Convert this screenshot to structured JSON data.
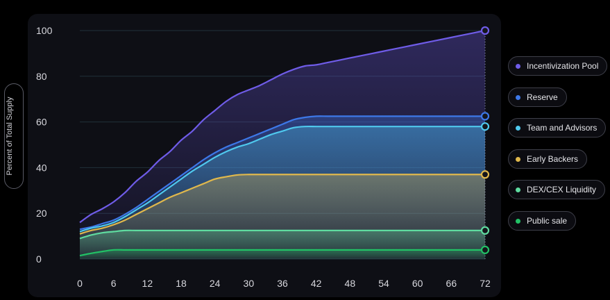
{
  "chart_data": {
    "type": "area",
    "ylabel": "Percent of Total Supply",
    "xlabel": "",
    "title": "",
    "xlim": [
      0,
      72
    ],
    "ylim": [
      0,
      100
    ],
    "x_ticks": [
      0,
      6,
      12,
      18,
      24,
      30,
      36,
      42,
      48,
      54,
      60,
      66,
      72
    ],
    "y_ticks": [
      0,
      20,
      40,
      60,
      80,
      100
    ],
    "grid": "horizontal",
    "legend_position": "right",
    "x": [
      0,
      2,
      4,
      6,
      8,
      10,
      12,
      14,
      16,
      18,
      20,
      22,
      24,
      26,
      28,
      30,
      32,
      34,
      36,
      38,
      40,
      42,
      44,
      46,
      48,
      50,
      52,
      54,
      56,
      58,
      60,
      62,
      64,
      66,
      68,
      70,
      72
    ],
    "series": [
      {
        "name": "Incentivization Pool",
        "color": "#6f5ce8",
        "values": [
          16,
          19.5,
          22,
          25,
          29,
          34,
          38,
          43,
          47,
          52,
          56,
          61,
          65,
          69,
          72,
          74,
          76,
          78.5,
          81,
          83,
          84.5,
          85,
          86,
          87,
          88,
          89,
          90,
          91,
          92,
          93,
          94,
          95,
          96,
          97,
          98,
          99,
          100
        ]
      },
      {
        "name": "Reserve",
        "color": "#3d78e8",
        "values": [
          13,
          14,
          15.5,
          17,
          19.5,
          22.5,
          26,
          29.5,
          33,
          36.5,
          40,
          43.5,
          46.5,
          49,
          51,
          53,
          55,
          57,
          59,
          61,
          62,
          62.5,
          62.5,
          62.5,
          62.5,
          62.5,
          62.5,
          62.5,
          62.5,
          62.5,
          62.5,
          62.5,
          62.5,
          62.5,
          62.5,
          62.5,
          62.5
        ]
      },
      {
        "name": "Team and Advisors",
        "color": "#4fc9ee",
        "values": [
          12,
          13.5,
          14.5,
          16,
          18.5,
          21.5,
          24.5,
          28,
          31.5,
          35,
          38.5,
          41.5,
          44.5,
          47,
          49,
          50.5,
          52.5,
          54.5,
          56,
          57.5,
          58,
          58,
          58,
          58,
          58,
          58,
          58,
          58,
          58,
          58,
          58,
          58,
          58,
          58,
          58,
          58,
          58
        ]
      },
      {
        "name": "Early Backers",
        "color": "#e0b84c",
        "values": [
          11,
          12.5,
          13.5,
          15,
          17,
          19.5,
          22,
          24.5,
          27,
          29,
          31,
          33,
          35,
          36,
          36.8,
          37,
          37,
          37,
          37,
          37,
          37,
          37,
          37,
          37,
          37,
          37,
          37,
          37,
          37,
          37,
          37,
          37,
          37,
          37,
          37,
          37,
          37
        ]
      },
      {
        "name": "DEX/CEX Liquidity",
        "color": "#5fdca0",
        "values": [
          9,
          10.5,
          11.5,
          12,
          12.5,
          12.5,
          12.5,
          12.5,
          12.5,
          12.5,
          12.5,
          12.5,
          12.5,
          12.5,
          12.5,
          12.5,
          12.5,
          12.5,
          12.5,
          12.5,
          12.5,
          12.5,
          12.5,
          12.5,
          12.5,
          12.5,
          12.5,
          12.5,
          12.5,
          12.5,
          12.5,
          12.5,
          12.5,
          12.5,
          12.5,
          12.5,
          12.5
        ]
      },
      {
        "name": "Public sale",
        "color": "#22c266",
        "values": [
          1.5,
          2.5,
          3.3,
          4,
          4,
          4,
          4,
          4,
          4,
          4,
          4,
          4,
          4,
          4,
          4,
          4,
          4,
          4,
          4,
          4,
          4,
          4,
          4,
          4,
          4,
          4,
          4,
          4,
          4,
          4,
          4,
          4,
          4,
          4,
          4,
          4,
          4
        ]
      }
    ]
  },
  "colors": {
    "background": "#000000",
    "panel": "#0e0f15",
    "grid": "#20313a",
    "tick_text": "#d8d8de"
  }
}
